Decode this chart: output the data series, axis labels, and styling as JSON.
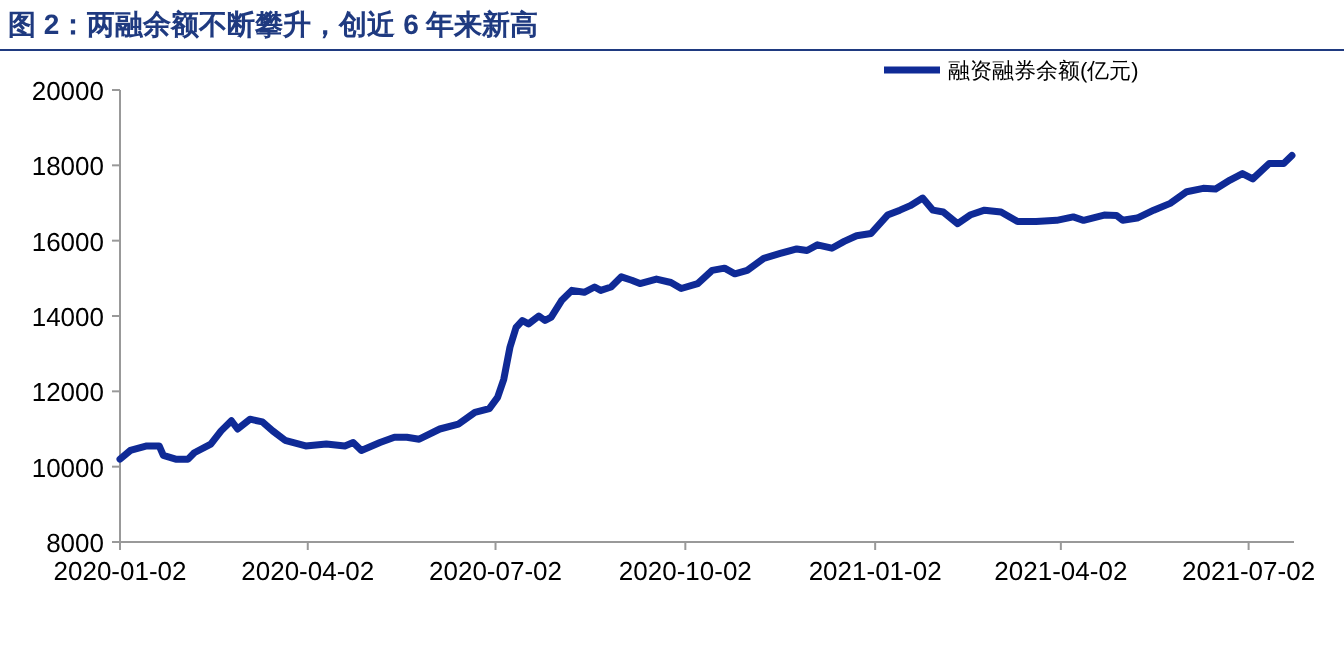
{
  "chart_data": {
    "type": "line",
    "title": "图 2：两融余额不断攀升，创近 6 年来新高",
    "x": [
      "2020-01-02",
      "2020-01-07",
      "2020-01-15",
      "2020-01-21",
      "2020-01-23",
      "2020-01-29",
      "2020-02-04",
      "2020-02-07",
      "2020-02-15",
      "2020-02-20",
      "2020-02-25",
      "2020-02-28",
      "2020-03-05",
      "2020-03-11",
      "2020-03-16",
      "2020-03-22",
      "2020-04-01",
      "2020-04-11",
      "2020-04-20",
      "2020-04-24",
      "2020-04-28",
      "2020-05-07",
      "2020-05-14",
      "2020-05-20",
      "2020-05-26",
      "2020-06-05",
      "2020-06-14",
      "2020-06-22",
      "2020-06-29",
      "2020-07-03",
      "2020-07-06",
      "2020-07-09",
      "2020-07-12",
      "2020-07-15",
      "2020-07-18",
      "2020-07-23",
      "2020-07-26",
      "2020-07-29",
      "2020-08-03",
      "2020-08-08",
      "2020-08-14",
      "2020-08-19",
      "2020-08-22",
      "2020-08-27",
      "2020-09-01",
      "2020-09-06",
      "2020-09-10",
      "2020-09-18",
      "2020-09-25",
      "2020-09-30",
      "2020-10-08",
      "2020-10-15",
      "2020-10-21",
      "2020-10-26",
      "2020-11-01",
      "2020-11-09",
      "2020-11-17",
      "2020-11-25",
      "2020-11-30",
      "2020-12-05",
      "2020-12-12",
      "2020-12-18",
      "2020-12-24",
      "2020-12-31",
      "2021-01-08",
      "2021-01-14",
      "2021-01-19",
      "2021-01-25",
      "2021-01-30",
      "2021-02-04",
      "2021-02-11",
      "2021-02-17",
      "2021-02-24",
      "2021-03-04",
      "2021-03-12",
      "2021-03-21",
      "2021-03-31",
      "2021-04-08",
      "2021-04-13",
      "2021-04-23",
      "2021-04-29",
      "2021-05-02",
      "2021-05-09",
      "2021-05-17",
      "2021-05-25",
      "2021-06-02",
      "2021-06-10",
      "2021-06-16",
      "2021-06-23",
      "2021-06-29",
      "2021-07-04",
      "2021-07-12",
      "2021-07-19",
      "2021-07-23"
    ],
    "series": [
      {
        "name": "融资融券余额(亿元)",
        "color": "#0f2a96",
        "values": [
          10200,
          10430,
          10550,
          10550,
          10300,
          10200,
          10200,
          10370,
          10600,
          10950,
          11220,
          11000,
          11260,
          11190,
          10950,
          10700,
          10550,
          10600,
          10550,
          10640,
          10430,
          10640,
          10780,
          10780,
          10730,
          11000,
          11130,
          11440,
          11540,
          11840,
          12320,
          13170,
          13700,
          13880,
          13790,
          14000,
          13880,
          13970,
          14410,
          14680,
          14630,
          14770,
          14680,
          14770,
          15040,
          14950,
          14860,
          14980,
          14890,
          14730,
          14860,
          15210,
          15270,
          15120,
          15210,
          15530,
          15660,
          15780,
          15740,
          15890,
          15800,
          15980,
          16130,
          16190,
          16680,
          16810,
          16930,
          17130,
          16810,
          16760,
          16450,
          16680,
          16810,
          16760,
          16510,
          16510,
          16540,
          16630,
          16540,
          16680,
          16670,
          16540,
          16600,
          16810,
          16990,
          17300,
          17390,
          17370,
          17610,
          17780,
          17640,
          18050,
          18050,
          18260
        ]
      }
    ],
    "xlim": [
      "2020-01-02",
      "2021-07-24"
    ],
    "xticks": [
      {
        "value": "2020-01-02",
        "label": "2020-01-02"
      },
      {
        "value": "2020-04-02",
        "label": "2020-04-02"
      },
      {
        "value": "2020-07-02",
        "label": "2020-07-02"
      },
      {
        "value": "2020-10-02",
        "label": "2020-10-02"
      },
      {
        "value": "2021-01-02",
        "label": "2021-01-02"
      },
      {
        "value": "2021-04-02",
        "label": "2021-04-02"
      },
      {
        "value": "2021-07-02",
        "label": "2021-07-02"
      }
    ],
    "ylim": [
      8000,
      20000
    ],
    "yticks": [
      8000,
      10000,
      12000,
      14000,
      16000,
      18000,
      20000
    ],
    "grid": false,
    "legend": "top right",
    "marker": "none",
    "line_style": "solid"
  }
}
